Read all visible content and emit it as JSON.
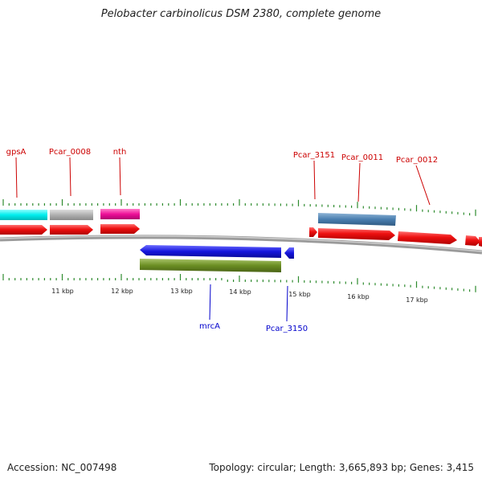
{
  "title": "Pelobacter carbinolicus DSM 2380, complete genome",
  "accession_text": "Accession: NC_007498",
  "stats_text": "Topology: circular; Length: 3,665,893 bp; Genes: 3,415",
  "genome": {
    "accession": "NC_007498",
    "topology": "circular",
    "length_bp": 3665893,
    "genes": 3415
  },
  "axis_labels": [
    "11 kbp",
    "12 kbp",
    "13 kbp",
    "14 kbp",
    "15 kbp",
    "16 kbp",
    "17 kbp"
  ],
  "gene_labels": {
    "forward": [
      "gpsA",
      "Pcar_0008",
      "nth",
      "Pcar_3151",
      "Pcar_0011",
      "Pcar_0012"
    ],
    "reverse": [
      "mrcA",
      "Pcar_3150"
    ]
  },
  "colors": {
    "label_forward": "#cc0000",
    "label_reverse": "#0000cc",
    "tick": "#2e8b2e",
    "backbone": "#808080",
    "cds": "#ee1111",
    "gpsA": "#00eeee",
    "Pcar_0008": "#b0b0b0",
    "nth": "#ee1199",
    "Pcar_0011": "#4a7fb0",
    "mrcA": "#1515dd",
    "Pcar_3150": "#6b8e23"
  }
}
